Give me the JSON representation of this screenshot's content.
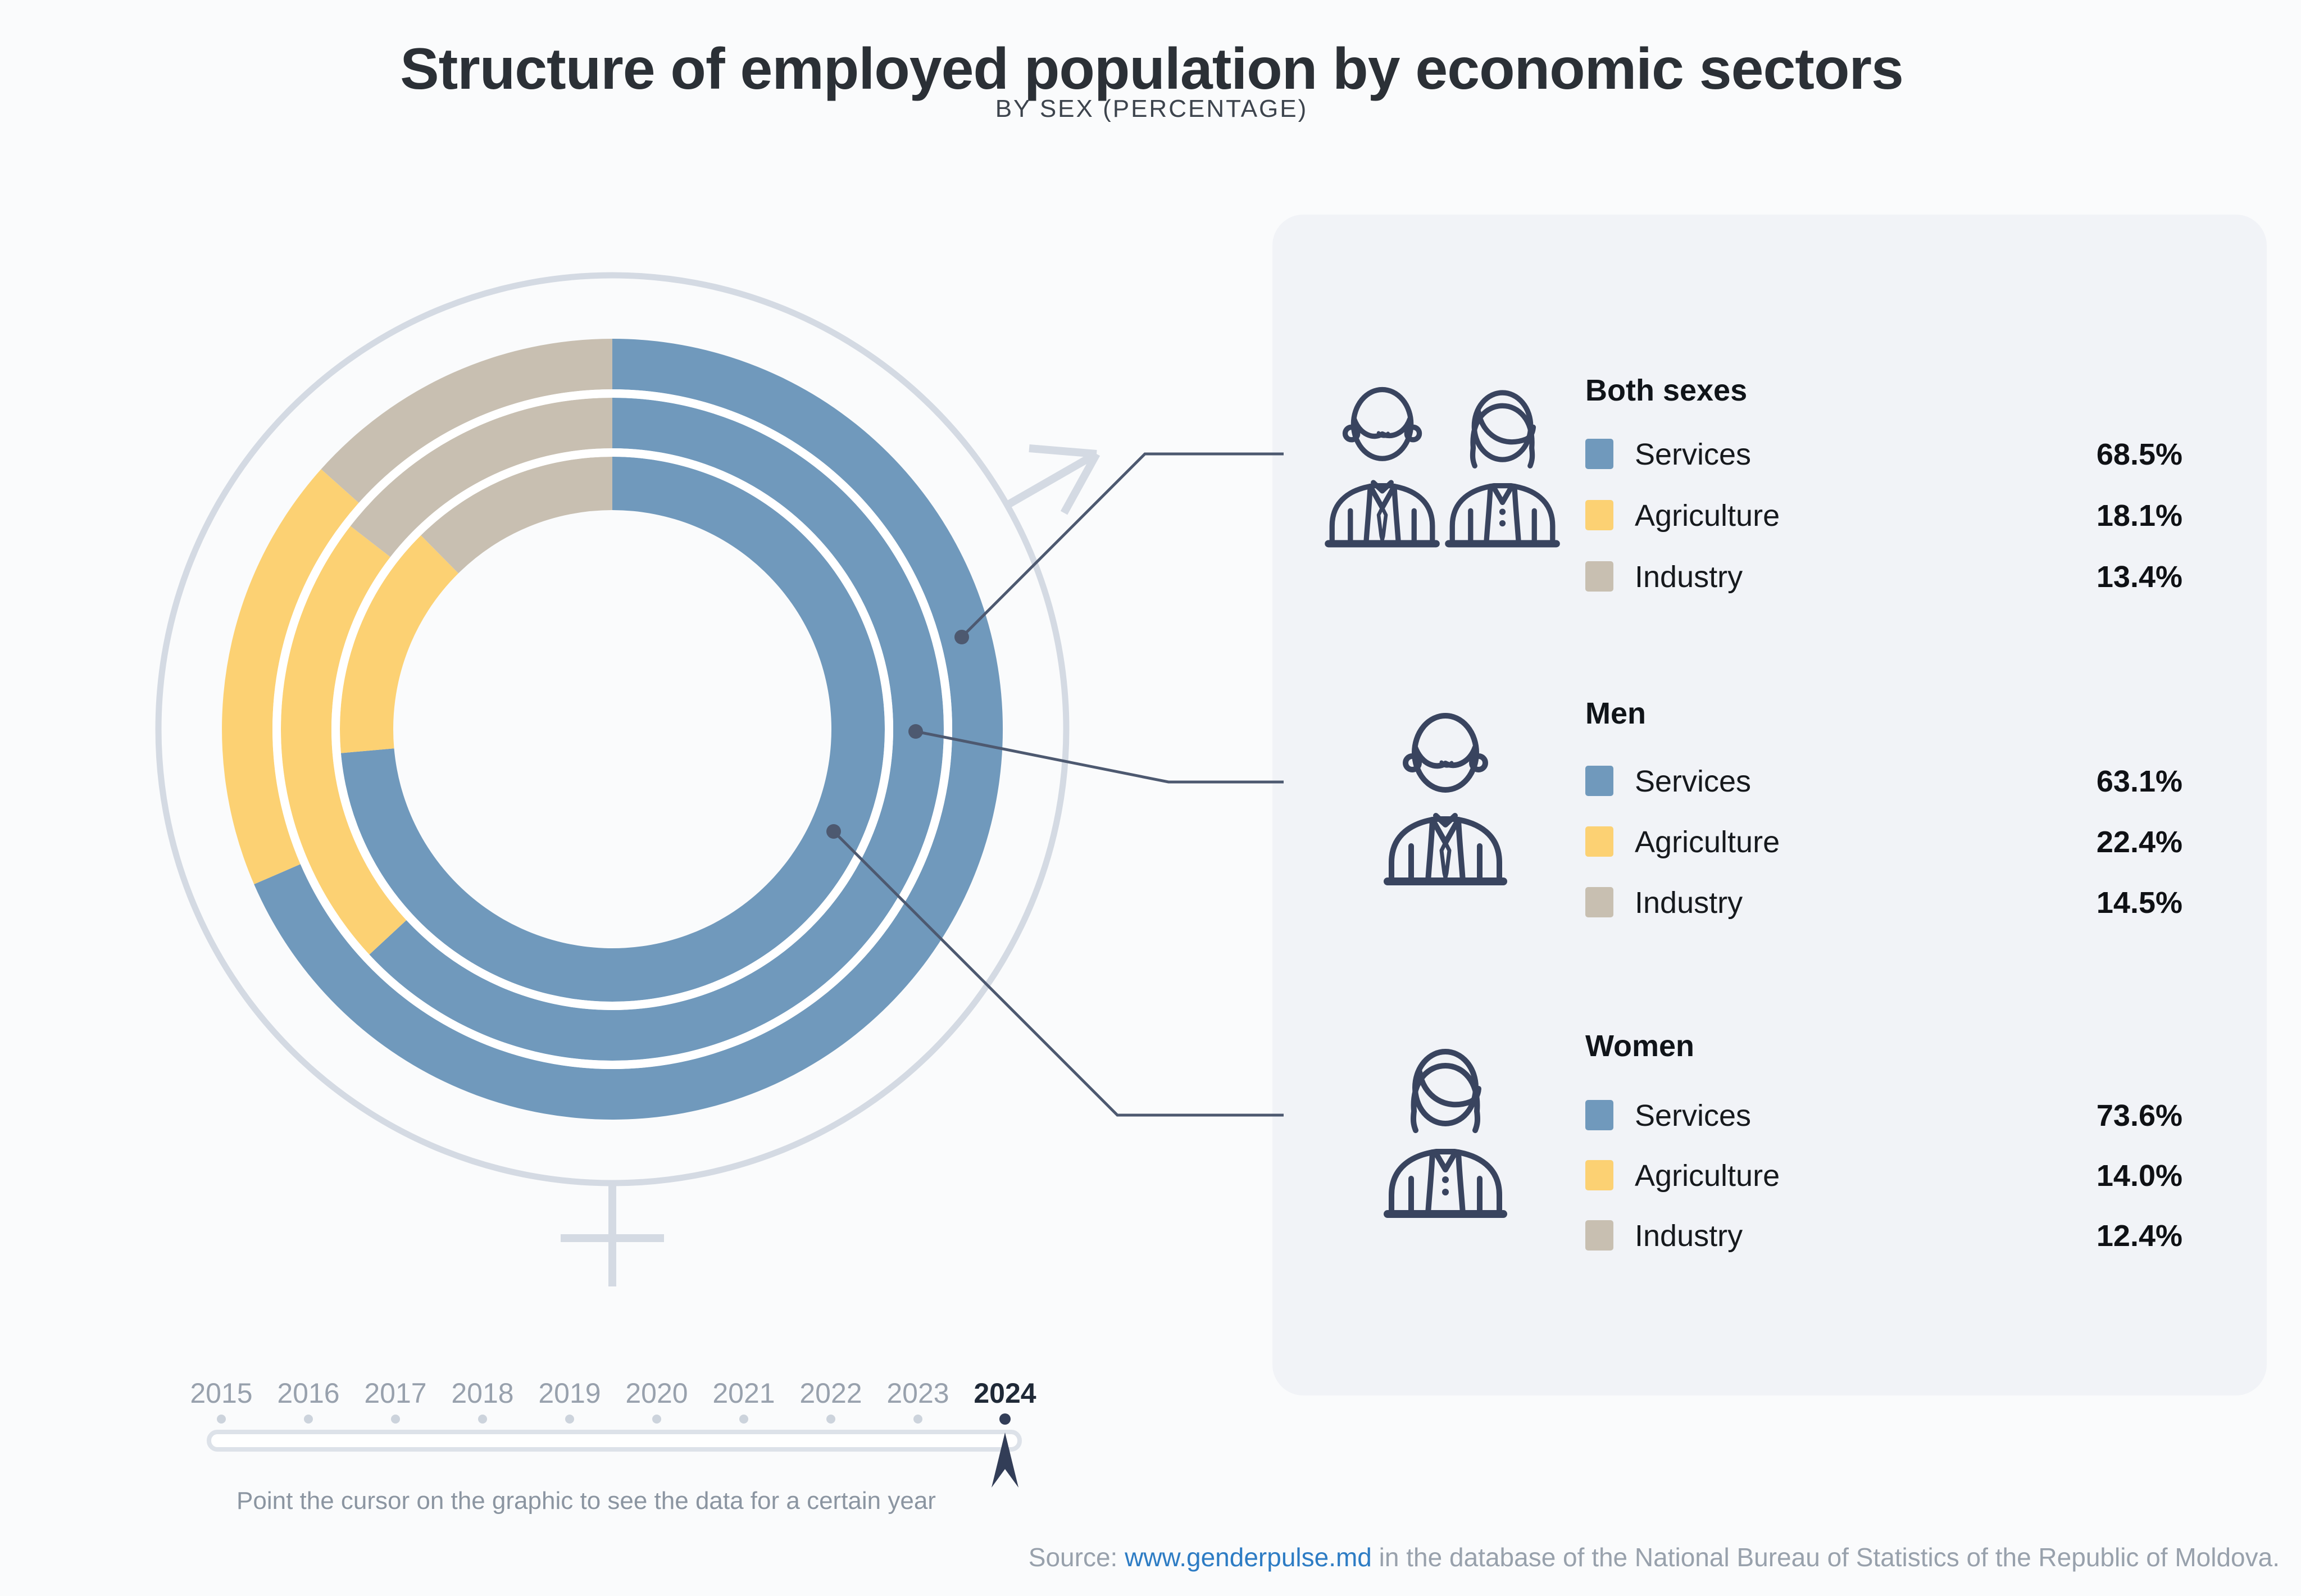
{
  "title": "Structure of employed population by economic sectors",
  "subtitle": "BY SEX (PERCENTAGE)",
  "chart_data": {
    "type": "donut",
    "unit": "%",
    "start_angle": "top",
    "direction": "clockwise",
    "sectors": [
      {
        "label": "Services",
        "color": "#7099bc"
      },
      {
        "label": "Agriculture",
        "color": "#fcd173"
      },
      {
        "label": "Industry",
        "color": "#c8bfb1"
      }
    ],
    "rings": [
      {
        "group": "Both sexes",
        "ring": "outer",
        "values": [
          68.5,
          18.1,
          13.4
        ]
      },
      {
        "group": "Men",
        "ring": "middle",
        "values": [
          63.1,
          22.4,
          14.5
        ]
      },
      {
        "group": "Women",
        "ring": "inner",
        "values": [
          73.6,
          14.0,
          12.4
        ]
      }
    ],
    "year_shown": "2024"
  },
  "legend_groups": [
    {
      "icon": "both-sexes",
      "title": "Both sexes",
      "rows": [
        {
          "label": "Services",
          "value_text": "68.5%"
        },
        {
          "label": "Agriculture",
          "value_text": "18.1%"
        },
        {
          "label": "Industry",
          "value_text": "13.4%"
        }
      ]
    },
    {
      "icon": "man",
      "title": "Men",
      "rows": [
        {
          "label": "Services",
          "value_text": "63.1%"
        },
        {
          "label": "Agriculture",
          "value_text": "22.4%"
        },
        {
          "label": "Industry",
          "value_text": "14.5%"
        }
      ]
    },
    {
      "icon": "woman",
      "title": "Women",
      "rows": [
        {
          "label": "Services",
          "value_text": "73.6%"
        },
        {
          "label": "Agriculture",
          "value_text": "14.0%"
        },
        {
          "label": "Industry",
          "value_text": "12.4%"
        }
      ]
    }
  ],
  "timeline": {
    "years": [
      "2015",
      "2016",
      "2017",
      "2018",
      "2019",
      "2020",
      "2021",
      "2022",
      "2023",
      "2024"
    ],
    "selected": "2024",
    "hint": "Point the cursor on the graphic to see the data for a certain year"
  },
  "source": {
    "prefix": "Source: ",
    "link": "www.genderpulse.md",
    "suffix": " in the database of the National Bureau of Statistics of the Republic of Moldova."
  },
  "colors": {
    "page_bg": "#fafbfc",
    "panel_bg": "#f1f3f7",
    "accent_navy": "#39445f",
    "connector": "#4d5970",
    "decorative_gray": "#d4dae3",
    "timeline_active": "#323d57",
    "timeline_inactive_dot": "#ccd3dc",
    "link_blue": "#2d7cc4"
  }
}
